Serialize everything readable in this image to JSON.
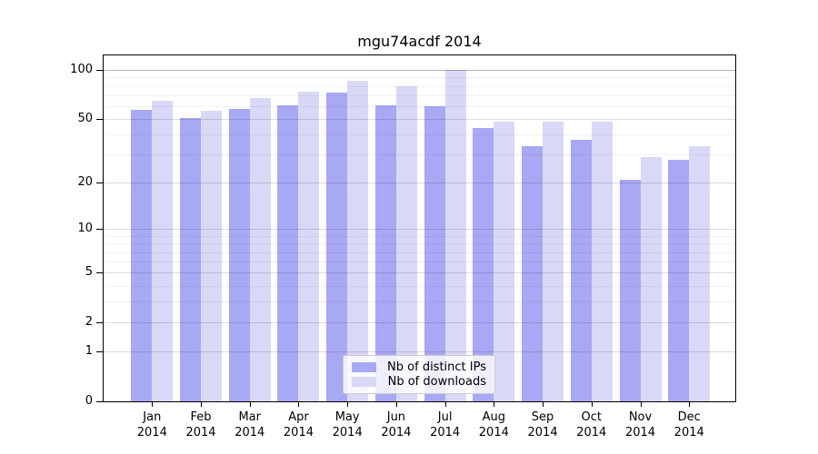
{
  "chart_data": {
    "type": "bar",
    "title": "mgu74acdf 2014",
    "scale": "log1p",
    "categories": [
      "Jan",
      "Feb",
      "Mar",
      "Apr",
      "May",
      "Jun",
      "Jul",
      "Aug",
      "Sep",
      "Oct",
      "Nov",
      "Dec"
    ],
    "year": "2014",
    "series": [
      {
        "name": "Nb of distinct IPs",
        "color": "#a8a8f5",
        "values": [
          57,
          51,
          58,
          61,
          73,
          61,
          60,
          44,
          34,
          37,
          21,
          28
        ]
      },
      {
        "name": "Nb of downloads",
        "color": "#d8d8f7",
        "values": [
          65,
          56,
          67,
          74,
          86,
          80,
          100,
          48,
          48,
          48,
          29,
          34
        ]
      }
    ],
    "y_ticks": [
      0,
      1,
      2,
      5,
      10,
      20,
      50,
      100
    ],
    "y_minor_gridlines": [
      3,
      4,
      6,
      7,
      8,
      9,
      30,
      40,
      60,
      70,
      80,
      90
    ],
    "ylim": [
      0,
      100
    ],
    "grid": true,
    "legend_position": "bottom-center"
  }
}
